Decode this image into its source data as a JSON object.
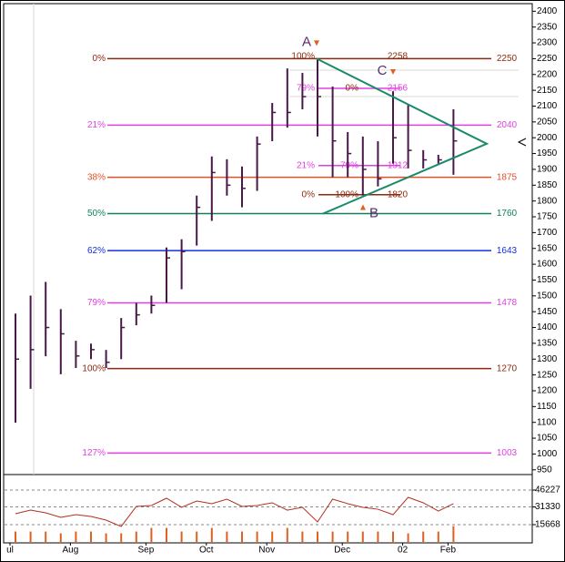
{
  "chart_data": [
    {
      "type": "ohlc",
      "categories": [
        "ul",
        null,
        null,
        null,
        "Aug",
        null,
        null,
        null,
        null,
        "Sep",
        null,
        null,
        null,
        "Oct",
        null,
        null,
        null,
        "Nov",
        null,
        null,
        null,
        null,
        "Dec",
        null,
        null,
        null,
        "02",
        null,
        null,
        "Feb"
      ],
      "series": [
        {
          "name": "High",
          "values": [
            1444,
            1501,
            1544,
            1458,
            1358,
            1349,
            1329,
            1430,
            1478,
            1501,
            1653,
            1679,
            1817,
            1941,
            1932,
            1909,
            2004,
            2110,
            2219,
            2205,
            2250,
            2162,
            2018,
            2004,
            1989,
            2147,
            2104,
            1961,
            1946,
            2090
          ]
        },
        {
          "name": "Low",
          "values": [
            1099,
            1206,
            1309,
            1252,
            1272,
            1300,
            1272,
            1300,
            1407,
            1444,
            1478,
            1521,
            1659,
            1737,
            1817,
            1780,
            1832,
            1989,
            2032,
            2090,
            2004,
            1875,
            1875,
            1817,
            1846,
            1918,
            1903,
            1903,
            1918,
            1883
          ]
        },
        {
          "name": "Close",
          "values": [
            1300,
            1330,
            1400,
            1380,
            1310,
            1330,
            1290,
            1400,
            1440,
            1470,
            1620,
            1640,
            1780,
            1890,
            1850,
            1840,
            1980,
            2080,
            2080,
            2130,
            2130,
            1990,
            1950,
            1900,
            1870,
            2000,
            1960,
            1930,
            1930,
            1990
          ]
        }
      ],
      "color": "#4a1848",
      "levels": [
        {
          "label": "0%",
          "value": 2250,
          "color": "#8b2a10"
        },
        {
          "label": "21%",
          "value": 2040,
          "color": "#e040e0"
        },
        {
          "label": "38%",
          "value": 1875,
          "color": "#e0502a"
        },
        {
          "label": "50%",
          "value": 1760,
          "color": "#108060"
        },
        {
          "label": "62%",
          "value": 1643,
          "color": "#1030e0"
        },
        {
          "label": "79%",
          "value": 1478,
          "color": "#e040e0"
        },
        {
          "label": "100%",
          "value": 1270,
          "color": "#8b2a10"
        },
        {
          "label": "127%",
          "value": 1003,
          "color": "#e040e0"
        }
      ],
      "inner_levels": [
        {
          "label": "100%",
          "value": 2258,
          "color": "#8b2a10"
        },
        {
          "label": "79%",
          "value": 2156,
          "color": "#e040e0",
          "mid": "0%",
          "mid_color": "#8b2a10"
        },
        {
          "label": "21%",
          "value": 1912,
          "color": "#e040e0",
          "mid": "79%",
          "mid_color": "#e040e0"
        },
        {
          "label": "0%",
          "value": 1820,
          "color": "#8b2a10",
          "mid": "100%",
          "mid_color": "#8b2a10"
        }
      ],
      "pivots": [
        {
          "label": "A",
          "value": 2250
        },
        {
          "label": "C",
          "value": 2156
        },
        {
          "label": "B",
          "value": 1760
        }
      ],
      "triangle": [
        2250,
        1981,
        1760
      ],
      "triangle_color": "#1a8a6a",
      "ylim": [
        935,
        2424
      ],
      "yticks": [
        2400,
        2350,
        2300,
        2250,
        2200,
        2150,
        2100,
        2050,
        2000,
        1950,
        1900,
        1850,
        1800,
        1750,
        1700,
        1650,
        1600,
        1550,
        1500,
        1450,
        1400,
        1350,
        1300,
        1250,
        1200,
        1150,
        1100,
        1050,
        1000,
        950
      ]
    },
    {
      "type": "line",
      "values": [
        25300,
        28500,
        26100,
        22100,
        24500,
        22900,
        19700,
        14100,
        31800,
        32600,
        39000,
        31000,
        36600,
        34200,
        38200,
        31800,
        32600,
        35000,
        28500,
        31000,
        18100,
        38200,
        34200,
        31000,
        29300,
        24500,
        39800,
        35000,
        27700,
        34200
      ],
      "color": "#b03020",
      "volume": [
        9600,
        9600,
        9600,
        8000,
        9600,
        9600,
        8000,
        8000,
        9600,
        12800,
        12800,
        9600,
        9600,
        12800,
        9600,
        9600,
        9600,
        9600,
        12800,
        9600,
        9600,
        9600,
        9600,
        9600,
        9600,
        9600,
        8000,
        9600,
        9600,
        14400
      ],
      "volume_color": "#e06020",
      "ylim": [
        400,
        59100
      ],
      "yticks": [
        46227,
        31330,
        15668
      ]
    }
  ]
}
